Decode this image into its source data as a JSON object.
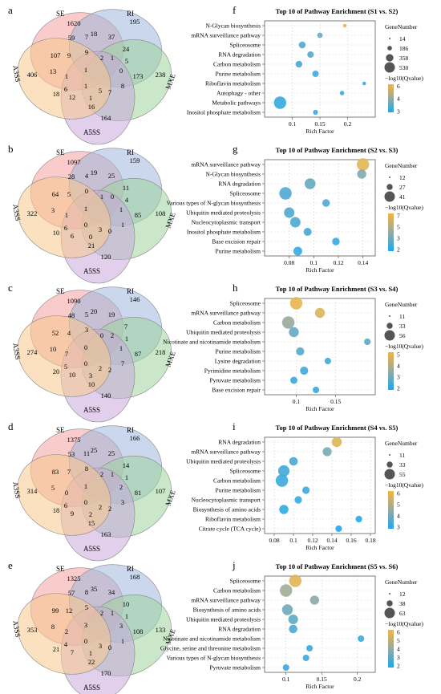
{
  "panel_letters": [
    "a",
    "b",
    "c",
    "d",
    "e",
    "f",
    "g",
    "h",
    "i",
    "j"
  ],
  "venn_set_labels": [
    "SE",
    "RI",
    "MXE",
    "A5SS",
    "A3SS"
  ],
  "colors": {
    "SE": "#f4a0a0",
    "RI": "#9fb7dc",
    "MXE": "#9fd39f",
    "A5SS": "#c8a8db",
    "A3SS": "#f7c98d"
  },
  "venn": [
    {
      "regions": {
        "SE": "1620",
        "RI": "195",
        "MXE": "238",
        "A5SS": "164",
        "A3SS": "406",
        "r1": "59",
        "r2": "7",
        "r3": "18",
        "r4": "37",
        "r5": "24",
        "r6": "107",
        "r7": "9",
        "r8": "9",
        "r9": "2",
        "r10": "1",
        "r11": "5",
        "r12": "13",
        "r13": "1",
        "r14": "1",
        "r15": "0",
        "r16": "173",
        "r17": "6",
        "r18": "1",
        "r19": "8",
        "r20": "18",
        "r21": "12",
        "r22": "1",
        "r23": "5",
        "r24": "7",
        "r25": "16"
      }
    },
    {
      "regions": {
        "SE": "1097",
        "RI": "159",
        "MXE": "108",
        "A5SS": "120",
        "A3SS": "322",
        "r1": "28",
        "r2": "4",
        "r3": "19",
        "r4": "25",
        "r5": "11",
        "r6": "64",
        "r7": "5",
        "r8": "0",
        "r9": "1",
        "r10": "0",
        "r11": "4",
        "r12": "3",
        "r13": "1",
        "r14": "1",
        "r15": "1",
        "r16": "85",
        "r17": "6",
        "r18": "0",
        "r19": "1",
        "r20": "10",
        "r21": "6",
        "r22": "0",
        "r23": "3",
        "r24": "0",
        "r25": "21"
      }
    },
    {
      "regions": {
        "SE": "1090",
        "RI": "146",
        "MXE": "218",
        "A5SS": "140",
        "A3SS": "274",
        "r1": "48",
        "r2": "5",
        "r3": "20",
        "r4": "19",
        "r5": "7",
        "r6": "52",
        "r7": "4",
        "r8": "3",
        "r9": "0",
        "r10": "2",
        "r11": "1",
        "r12": "10",
        "r13": "7",
        "r14": "0",
        "r15": "1",
        "r16": "87",
        "r17": "5",
        "r18": "0",
        "r19": "7",
        "r20": "20",
        "r21": "10",
        "r22": "3",
        "r23": "2",
        "r24": "2",
        "r25": "10"
      }
    },
    {
      "regions": {
        "SE": "1375",
        "RI": "166",
        "MXE": "107",
        "A5SS": "163",
        "A3SS": "314",
        "r1": "53",
        "r2": "11",
        "r3": "25",
        "r4": "25",
        "r5": "14",
        "r6": "83",
        "r7": "7",
        "r8": "8",
        "r9": "2",
        "r10": "1",
        "r11": "1",
        "r12": "5",
        "r13": "0",
        "r14": "1",
        "r15": "2",
        "r16": "81",
        "r17": "6",
        "r18": "0",
        "r19": "3",
        "r20": "18",
        "r21": "9",
        "r22": "2",
        "r23": "2",
        "r24": "2",
        "r25": "15"
      }
    },
    {
      "regions": {
        "SE": "1325",
        "RI": "168",
        "MXE": "133",
        "A5SS": "170",
        "A3SS": "353",
        "r1": "57",
        "r2": "8",
        "r3": "35",
        "r4": "34",
        "r5": "10",
        "r6": "99",
        "r7": "12",
        "r8": "5",
        "r9": "2",
        "r10": "1",
        "r11": "1",
        "r12": "8",
        "r13": "2",
        "r14": "3",
        "r15": "3",
        "r16": "108",
        "r17": "4",
        "r18": "0",
        "r19": "1",
        "r20": "21",
        "r21": "7",
        "r22": "1",
        "r23": "3",
        "r24": "0",
        "r25": "22"
      }
    }
  ],
  "chart_data": [
    {
      "type": "scatter",
      "title": "Top 10 of Pathway Enrichment (S1 vs. S2)",
      "xlabel": "Rich Factor",
      "xlim": [
        0.05,
        0.25
      ],
      "xticks": [
        "0.1",
        "0.15",
        "0.2"
      ],
      "categories": [
        "N-Glycan biosynthesis",
        "mRNA surveillance pathway",
        "Spliceosome",
        "RNA degradation",
        "Carbon metabolism",
        "Purine metabolism",
        "Riboflavin metabolism",
        "Autophagy - other",
        "Metabolic pathways",
        "Inositol phosphate metabolism"
      ],
      "x": [
        0.195,
        0.15,
        0.118,
        0.133,
        0.112,
        0.142,
        0.23,
        0.19,
        0.078,
        0.142
      ],
      "size": [
        14,
        60,
        120,
        100,
        110,
        100,
        14,
        30,
        530,
        45
      ],
      "q": [
        6.2,
        3.8,
        3.4,
        3.4,
        3.1,
        3.1,
        3.0,
        3.0,
        2.9,
        2.9
      ],
      "legend_size_title": "GeneNumber",
      "size_levels": [
        "14",
        "186",
        "358",
        "530"
      ],
      "legend_color_title": "−log10(Qvalue)",
      "color_ticks": [
        "6",
        "4",
        "3"
      ],
      "color_range": [
        2.5,
        6.5
      ]
    },
    {
      "type": "scatter",
      "title": "Top 10 of Pathway Enrichment (S2 vs. S3)",
      "xlabel": "Rich Factor",
      "xlim": [
        0.06,
        0.15
      ],
      "xticks": [
        "0.08",
        "0.1",
        "0.12",
        "0.14"
      ],
      "categories": [
        "mRNA surveillance pathway",
        "N-Glycan biosynthesis",
        "RNA degradation",
        "Spliceosome",
        "Various types of N-glycan biosynthesis",
        "Ubiquitin mediated proteolysis",
        "Nucleocytoplasmic transport",
        "Inositol phosphate metabolism",
        "Base excision repair",
        "Purine metabolism"
      ],
      "x": [
        0.14,
        0.139,
        0.097,
        0.077,
        0.11,
        0.08,
        0.085,
        0.095,
        0.118,
        0.087
      ],
      "size": [
        41,
        20,
        30,
        41,
        12,
        27,
        27,
        14,
        12,
        18
      ],
      "q": [
        6.5,
        4.0,
        3.5,
        3.0,
        3.0,
        3.0,
        3.0,
        2.8,
        2.5,
        2.5
      ],
      "legend_size_title": "GeneNumber",
      "size_levels": [
        "12",
        "27",
        "41"
      ],
      "legend_color_title": "−log10(Qvalue)",
      "color_ticks": [
        "7",
        "5",
        "3",
        "2"
      ],
      "color_range": [
        2,
        7
      ]
    },
    {
      "type": "scatter",
      "title": "Top 10 of Pathway Enrichment (S3 vs. S4)",
      "xlabel": "Rich Factor",
      "xlim": [
        0.06,
        0.2
      ],
      "xticks": [
        "0.1",
        "0.15"
      ],
      "categories": [
        "Spliceosome",
        "mRNA surveillance pathway",
        "Carbon metabolism",
        "Ubiquitin mediated proteolysis",
        "Nicotinate and nicotinamide metabolism",
        "Purine metabolism",
        "Lysine degradation",
        "Pyrimidine metabolism",
        "Pyruvate metabolism",
        "Base excision repair"
      ],
      "x": [
        0.1,
        0.13,
        0.09,
        0.097,
        0.19,
        0.105,
        0.14,
        0.11,
        0.097,
        0.125
      ],
      "size": [
        56,
        33,
        56,
        33,
        11,
        20,
        11,
        20,
        14,
        11
      ],
      "q": [
        5.2,
        5.0,
        3.8,
        3.0,
        2.9,
        2.8,
        2.5,
        2.5,
        2.4,
        2.4
      ],
      "legend_size_title": "GeneNumber",
      "size_levels": [
        "11",
        "33",
        "56"
      ],
      "legend_color_title": "−log10(Qvalue)",
      "color_ticks": [
        "5",
        "4",
        "3",
        "2"
      ],
      "color_range": [
        2,
        5.5
      ]
    },
    {
      "type": "scatter",
      "title": "Top 10 of Pathway Enrichment (S4 vs. S5)",
      "xlabel": "Rich Factor",
      "xlim": [
        0.07,
        0.185
      ],
      "xticks": [
        "0.08",
        "0.1",
        "0.12",
        "0.14",
        "0.16",
        "0.18"
      ],
      "categories": [
        "RNA degradation",
        "mRNA surveillance pathway",
        "Ubiquitin mediated proteolysis",
        "Spliceosome",
        "Carbon metabolism",
        "Purine metabolism",
        "Nucleocytoplasmic transport",
        "Biosynthesis of amino acids",
        "Riboflavin metabolism",
        "Citrate cycle (TCA cycle)"
      ],
      "x": [
        0.145,
        0.135,
        0.1,
        0.09,
        0.088,
        0.113,
        0.105,
        0.09,
        0.168,
        0.147
      ],
      "size": [
        33,
        25,
        22,
        45,
        55,
        15,
        15,
        27,
        11,
        11
      ],
      "q": [
        6.0,
        4.0,
        3.2,
        3.1,
        3.0,
        3.0,
        2.9,
        2.8,
        2.6,
        2.5
      ],
      "legend_size_title": "GeneNumber",
      "size_levels": [
        "11",
        "33",
        "55"
      ],
      "legend_color_title": "−log10(Qvalue)",
      "color_ticks": [
        "6",
        "5",
        "4",
        "3"
      ],
      "color_range": [
        2.5,
        6.5
      ]
    },
    {
      "type": "scatter",
      "title": "Top 10 of Pathway Enrichment (S5 vs. S6)",
      "xlabel": "Rich Factor",
      "xlim": [
        0.07,
        0.225
      ],
      "xticks": [
        "0.1",
        "0.15",
        "0.2"
      ],
      "categories": [
        "Spliceosome",
        "Carbon metabolism",
        "mRNA surveillance pathway",
        "Biosynthesis of amino acids",
        "Ubiquitin mediated proteolysis",
        "RNA degradation",
        "Nicotinate and nicotinamide metabolism",
        "Glycine, serine and threonine metabolism",
        "Various types of N-glycan biosynthesis",
        "Pyruvate metabolism"
      ],
      "x": [
        0.113,
        0.1,
        0.14,
        0.102,
        0.11,
        0.11,
        0.205,
        0.133,
        0.128,
        0.1
      ],
      "size": [
        63,
        63,
        30,
        45,
        35,
        25,
        12,
        12,
        12,
        12
      ],
      "q": [
        6.0,
        4.5,
        4.0,
        3.5,
        3.2,
        2.8,
        2.5,
        2.5,
        2.5,
        2.5
      ],
      "legend_size_title": "GeneNumber",
      "size_levels": [
        "12",
        "38",
        "63"
      ],
      "legend_color_title": "−log10(Qvalue)",
      "color_ticks": [
        "6",
        "5",
        "4",
        "3",
        "2"
      ],
      "color_range": [
        2,
        6.5
      ]
    }
  ]
}
